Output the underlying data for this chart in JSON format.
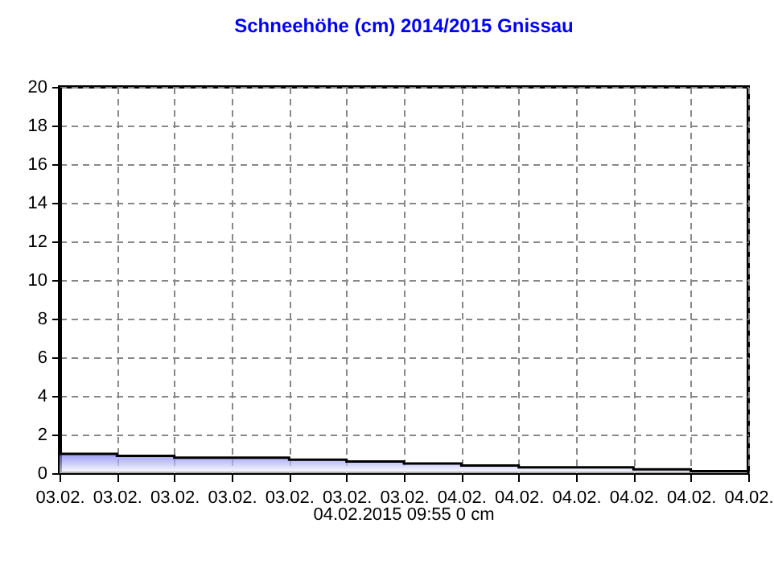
{
  "chart_data": {
    "type": "area",
    "title": "Schneehöhe (cm)  2014/2015      Gnissau",
    "categories": [
      "03.02.",
      "03.02.",
      "03.02.",
      "03.02.",
      "03.02.",
      "03.02.",
      "03.02.",
      "04.02.",
      "04.02.",
      "04.02.",
      "04.02.",
      "04.02.",
      "04.02."
    ],
    "values": [
      1.0,
      0.9,
      0.8,
      0.8,
      0.7,
      0.6,
      0.5,
      0.4,
      0.3,
      0.3,
      0.2,
      0.1,
      0
    ],
    "color": "#7070f0",
    "ylim": [
      0,
      20
    ],
    "yticks": [
      0,
      2,
      4,
      6,
      8,
      10,
      12,
      14,
      16,
      18,
      20
    ],
    "grid": true,
    "annotations": [
      "04.02.2015  09:55   0 cm"
    ]
  }
}
